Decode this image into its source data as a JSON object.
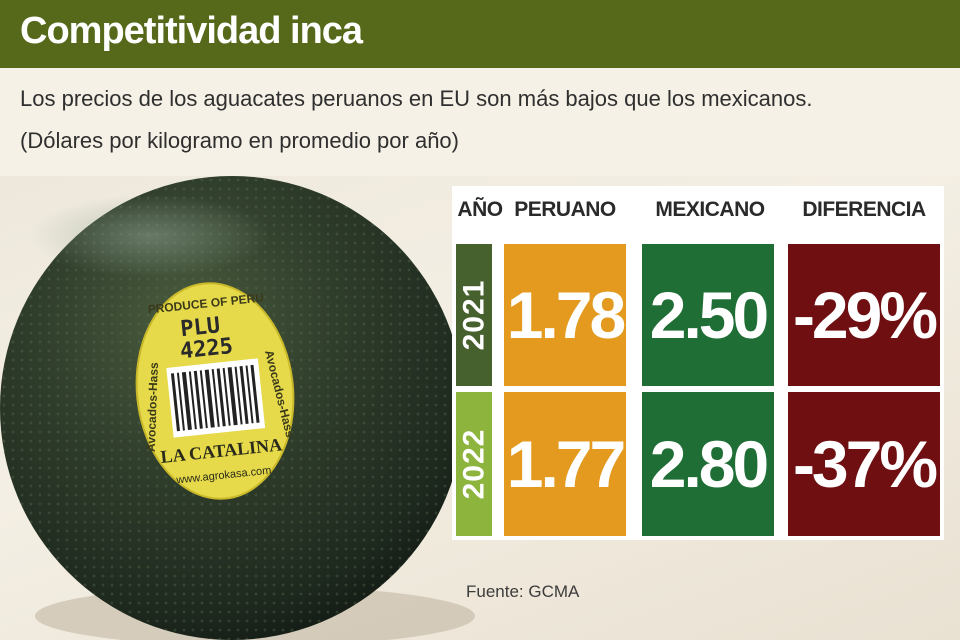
{
  "header": {
    "title": "Competitividad inca",
    "subtitle": "Los precios de los aguacates peruanos en EU son más bajos que los mexicanos.",
    "unit_note": "(Dólares por kilogramo en promedio por año)"
  },
  "sticker": {
    "top_text": "PRODUCE OF PERU",
    "plu_label": "PLU",
    "plu_number": "4225",
    "side_left": "Avocados-Hass",
    "side_right": "Avocados-Hass",
    "brand": "LA CATALINA",
    "website": "www.agrokasa.com"
  },
  "chart_data": {
    "type": "table",
    "columns": [
      "AÑO",
      "PERUANO",
      "MEXICANO",
      "DIFERENCIA"
    ],
    "rows": [
      {
        "year": "2021",
        "peruano": "1.78",
        "mexicano": "2.50",
        "diferencia": "-29%"
      },
      {
        "year": "2022",
        "peruano": "1.77",
        "mexicano": "2.80",
        "diferencia": "-37%"
      }
    ]
  },
  "colors": {
    "header": "#56691a",
    "year_2021": "#47612e",
    "year_2022": "#8db43c",
    "peruano": "#e39a1f",
    "mexicano": "#1e6e35",
    "diferencia": "#6f0f12"
  },
  "footer": {
    "source": "Fuente: GCMA"
  }
}
